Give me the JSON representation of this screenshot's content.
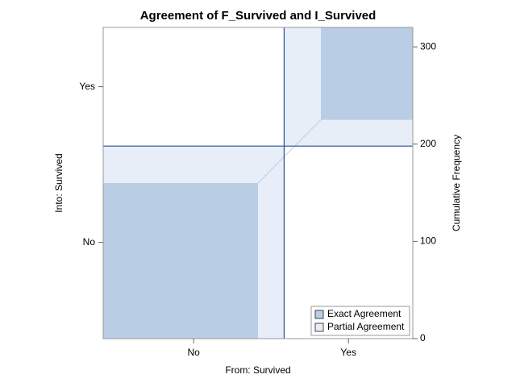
{
  "chart_data": {
    "type": "agreement",
    "title": "Agreement of F_Survived and I_Survived",
    "x_label": "From: Survived",
    "y_label": "Into: Survived",
    "y2_label": "Cumulative Frequency",
    "categories": [
      "No",
      "Yes"
    ],
    "table": [
      [
        160,
        27
      ],
      [
        38,
        95
      ]
    ],
    "ylim": [
      0,
      320
    ],
    "yticks": [
      0,
      100,
      200,
      300
    ],
    "legend": [
      "Exact Agreement",
      "Partial Agreement"
    ],
    "exact_color": "#b9cde5",
    "partial_color": "#e8eef8",
    "line_color": "#2b4f95"
  }
}
